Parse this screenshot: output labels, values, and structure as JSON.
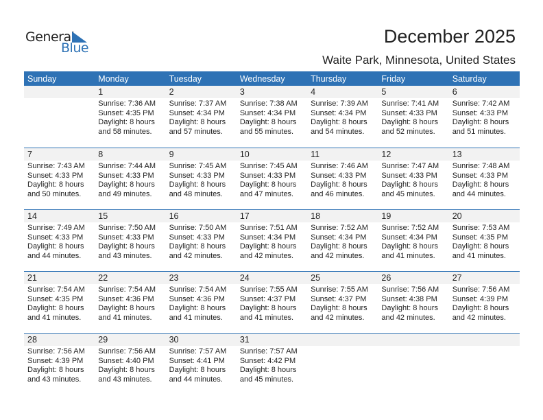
{
  "logo": {
    "text_general": "General",
    "text_blue": "Blue"
  },
  "header": {
    "title": "December 2025",
    "location": "Waite Park, Minnesota, United States"
  },
  "colors": {
    "accent": "#2e72b5",
    "band": "#f2f2f2"
  },
  "weekdays": [
    "Sunday",
    "Monday",
    "Tuesday",
    "Wednesday",
    "Thursday",
    "Friday",
    "Saturday"
  ],
  "weeks": [
    [
      null,
      {
        "day": "1",
        "sunrise": "Sunrise: 7:36 AM",
        "sunset": "Sunset: 4:35 PM",
        "daylight1": "Daylight: 8 hours",
        "daylight2": "and 58 minutes."
      },
      {
        "day": "2",
        "sunrise": "Sunrise: 7:37 AM",
        "sunset": "Sunset: 4:34 PM",
        "daylight1": "Daylight: 8 hours",
        "daylight2": "and 57 minutes."
      },
      {
        "day": "3",
        "sunrise": "Sunrise: 7:38 AM",
        "sunset": "Sunset: 4:34 PM",
        "daylight1": "Daylight: 8 hours",
        "daylight2": "and 55 minutes."
      },
      {
        "day": "4",
        "sunrise": "Sunrise: 7:39 AM",
        "sunset": "Sunset: 4:34 PM",
        "daylight1": "Daylight: 8 hours",
        "daylight2": "and 54 minutes."
      },
      {
        "day": "5",
        "sunrise": "Sunrise: 7:41 AM",
        "sunset": "Sunset: 4:33 PM",
        "daylight1": "Daylight: 8 hours",
        "daylight2": "and 52 minutes."
      },
      {
        "day": "6",
        "sunrise": "Sunrise: 7:42 AM",
        "sunset": "Sunset: 4:33 PM",
        "daylight1": "Daylight: 8 hours",
        "daylight2": "and 51 minutes."
      }
    ],
    [
      {
        "day": "7",
        "sunrise": "Sunrise: 7:43 AM",
        "sunset": "Sunset: 4:33 PM",
        "daylight1": "Daylight: 8 hours",
        "daylight2": "and 50 minutes."
      },
      {
        "day": "8",
        "sunrise": "Sunrise: 7:44 AM",
        "sunset": "Sunset: 4:33 PM",
        "daylight1": "Daylight: 8 hours",
        "daylight2": "and 49 minutes."
      },
      {
        "day": "9",
        "sunrise": "Sunrise: 7:45 AM",
        "sunset": "Sunset: 4:33 PM",
        "daylight1": "Daylight: 8 hours",
        "daylight2": "and 48 minutes."
      },
      {
        "day": "10",
        "sunrise": "Sunrise: 7:45 AM",
        "sunset": "Sunset: 4:33 PM",
        "daylight1": "Daylight: 8 hours",
        "daylight2": "and 47 minutes."
      },
      {
        "day": "11",
        "sunrise": "Sunrise: 7:46 AM",
        "sunset": "Sunset: 4:33 PM",
        "daylight1": "Daylight: 8 hours",
        "daylight2": "and 46 minutes."
      },
      {
        "day": "12",
        "sunrise": "Sunrise: 7:47 AM",
        "sunset": "Sunset: 4:33 PM",
        "daylight1": "Daylight: 8 hours",
        "daylight2": "and 45 minutes."
      },
      {
        "day": "13",
        "sunrise": "Sunrise: 7:48 AM",
        "sunset": "Sunset: 4:33 PM",
        "daylight1": "Daylight: 8 hours",
        "daylight2": "and 44 minutes."
      }
    ],
    [
      {
        "day": "14",
        "sunrise": "Sunrise: 7:49 AM",
        "sunset": "Sunset: 4:33 PM",
        "daylight1": "Daylight: 8 hours",
        "daylight2": "and 44 minutes."
      },
      {
        "day": "15",
        "sunrise": "Sunrise: 7:50 AM",
        "sunset": "Sunset: 4:33 PM",
        "daylight1": "Daylight: 8 hours",
        "daylight2": "and 43 minutes."
      },
      {
        "day": "16",
        "sunrise": "Sunrise: 7:50 AM",
        "sunset": "Sunset: 4:33 PM",
        "daylight1": "Daylight: 8 hours",
        "daylight2": "and 42 minutes."
      },
      {
        "day": "17",
        "sunrise": "Sunrise: 7:51 AM",
        "sunset": "Sunset: 4:34 PM",
        "daylight1": "Daylight: 8 hours",
        "daylight2": "and 42 minutes."
      },
      {
        "day": "18",
        "sunrise": "Sunrise: 7:52 AM",
        "sunset": "Sunset: 4:34 PM",
        "daylight1": "Daylight: 8 hours",
        "daylight2": "and 42 minutes."
      },
      {
        "day": "19",
        "sunrise": "Sunrise: 7:52 AM",
        "sunset": "Sunset: 4:34 PM",
        "daylight1": "Daylight: 8 hours",
        "daylight2": "and 41 minutes."
      },
      {
        "day": "20",
        "sunrise": "Sunrise: 7:53 AM",
        "sunset": "Sunset: 4:35 PM",
        "daylight1": "Daylight: 8 hours",
        "daylight2": "and 41 minutes."
      }
    ],
    [
      {
        "day": "21",
        "sunrise": "Sunrise: 7:54 AM",
        "sunset": "Sunset: 4:35 PM",
        "daylight1": "Daylight: 8 hours",
        "daylight2": "and 41 minutes."
      },
      {
        "day": "22",
        "sunrise": "Sunrise: 7:54 AM",
        "sunset": "Sunset: 4:36 PM",
        "daylight1": "Daylight: 8 hours",
        "daylight2": "and 41 minutes."
      },
      {
        "day": "23",
        "sunrise": "Sunrise: 7:54 AM",
        "sunset": "Sunset: 4:36 PM",
        "daylight1": "Daylight: 8 hours",
        "daylight2": "and 41 minutes."
      },
      {
        "day": "24",
        "sunrise": "Sunrise: 7:55 AM",
        "sunset": "Sunset: 4:37 PM",
        "daylight1": "Daylight: 8 hours",
        "daylight2": "and 41 minutes."
      },
      {
        "day": "25",
        "sunrise": "Sunrise: 7:55 AM",
        "sunset": "Sunset: 4:37 PM",
        "daylight1": "Daylight: 8 hours",
        "daylight2": "and 42 minutes."
      },
      {
        "day": "26",
        "sunrise": "Sunrise: 7:56 AM",
        "sunset": "Sunset: 4:38 PM",
        "daylight1": "Daylight: 8 hours",
        "daylight2": "and 42 minutes."
      },
      {
        "day": "27",
        "sunrise": "Sunrise: 7:56 AM",
        "sunset": "Sunset: 4:39 PM",
        "daylight1": "Daylight: 8 hours",
        "daylight2": "and 42 minutes."
      }
    ],
    [
      {
        "day": "28",
        "sunrise": "Sunrise: 7:56 AM",
        "sunset": "Sunset: 4:39 PM",
        "daylight1": "Daylight: 8 hours",
        "daylight2": "and 43 minutes."
      },
      {
        "day": "29",
        "sunrise": "Sunrise: 7:56 AM",
        "sunset": "Sunset: 4:40 PM",
        "daylight1": "Daylight: 8 hours",
        "daylight2": "and 43 minutes."
      },
      {
        "day": "30",
        "sunrise": "Sunrise: 7:57 AM",
        "sunset": "Sunset: 4:41 PM",
        "daylight1": "Daylight: 8 hours",
        "daylight2": "and 44 minutes."
      },
      {
        "day": "31",
        "sunrise": "Sunrise: 7:57 AM",
        "sunset": "Sunset: 4:42 PM",
        "daylight1": "Daylight: 8 hours",
        "daylight2": "and 45 minutes."
      },
      null,
      null,
      null
    ]
  ]
}
